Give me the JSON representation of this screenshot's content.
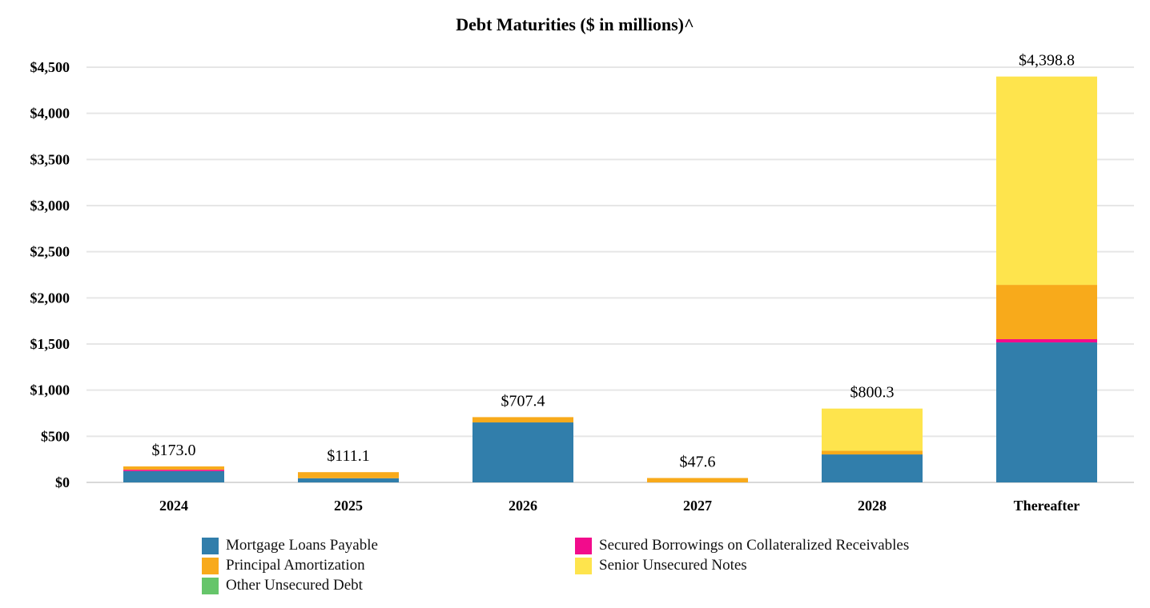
{
  "chart_data": {
    "type": "bar",
    "stacked": true,
    "title": "Debt Maturities ($ in millions)^",
    "xlabel": "",
    "ylabel": "",
    "ylim": [
      0,
      4500
    ],
    "yticks": [
      0,
      500,
      1000,
      1500,
      2000,
      2500,
      3000,
      3500,
      4000,
      4500
    ],
    "ytick_labels": [
      "$0",
      "$500",
      "$1,000",
      "$1,500",
      "$2,000",
      "$2,500",
      "$3,000",
      "$3,500",
      "$4,000",
      "$4,500"
    ],
    "grid": true,
    "legend_position": "bottom",
    "categories": [
      "2024",
      "2025",
      "2026",
      "2027",
      "2028",
      "Thereafter"
    ],
    "totals": [
      173.0,
      111.1,
      707.4,
      47.6,
      800.3,
      4398.8
    ],
    "total_labels": [
      "$173.0",
      "$111.1",
      "$707.4",
      "$47.6",
      "$800.3",
      "$4,398.8"
    ],
    "series": [
      {
        "name": "Mortgage Loans Payable",
        "color": "#317EAB",
        "values": [
          122,
          45,
          650,
          0,
          303,
          1517
        ]
      },
      {
        "name": "Secured Borrowings on Collateralized Receivables",
        "color": "#F20C8C",
        "values": [
          15,
          0,
          0,
          0,
          0,
          35
        ]
      },
      {
        "name": "Principal Amortization",
        "color": "#F8AA1B",
        "values": [
          36,
          66.1,
          57.4,
          47.6,
          40,
          589
        ]
      },
      {
        "name": "Senior Unsecured Notes",
        "color": "#FEE44D",
        "values": [
          0,
          0,
          0,
          0,
          457.3,
          2257.8
        ]
      },
      {
        "name": "Other Unsecured Debt",
        "color": "#66C56A",
        "values": [
          0,
          0,
          0,
          0,
          0,
          0
        ]
      }
    ],
    "legend_order": [
      0,
      1,
      2,
      3,
      4
    ]
  }
}
